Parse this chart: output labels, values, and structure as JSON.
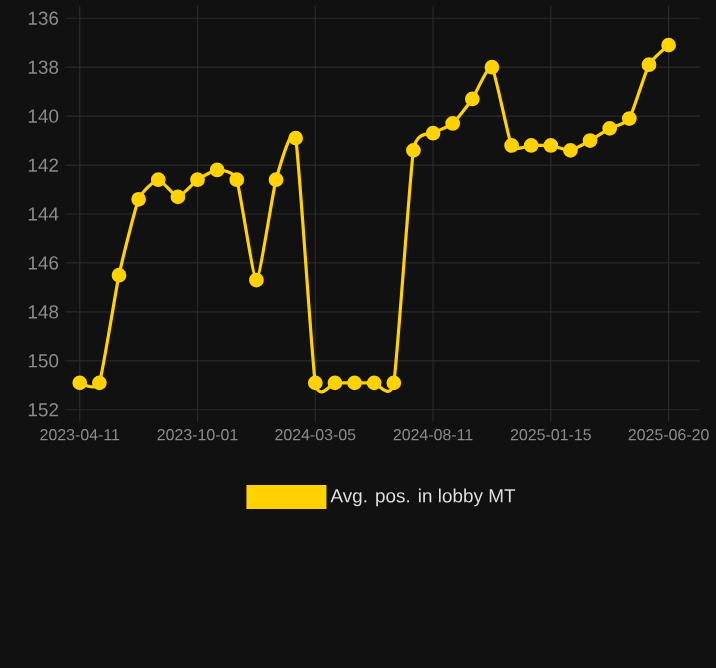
{
  "chart_data": {
    "type": "line",
    "categories": [
      "2023-04-11",
      null,
      null,
      null,
      null,
      null,
      "2023-10-01",
      null,
      null,
      null,
      null,
      null,
      "2024-03-05",
      null,
      null,
      null,
      null,
      null,
      "2024-08-11",
      null,
      null,
      null,
      null,
      null,
      "2025-01-15",
      null,
      null,
      null,
      null,
      null,
      "2025-06-20"
    ],
    "series": [
      {
        "name": "Avg. pos. in lobby MT",
        "color": "#ffd200",
        "values": [
          150.9,
          150.9,
          146.5,
          143.4,
          142.6,
          143.3,
          142.6,
          142.2,
          142.6,
          146.7,
          142.6,
          140.9,
          150.9,
          150.9,
          150.9,
          150.9,
          150.9,
          141.4,
          140.7,
          140.3,
          139.3,
          138.0,
          141.2,
          141.2,
          141.2,
          141.4,
          141.0,
          140.5,
          140.1,
          137.9,
          137.1
        ]
      }
    ],
    "ylim": [
      152.5,
      135.5
    ],
    "yticks": [
      136,
      138,
      140,
      142,
      144,
      146,
      148,
      150,
      152
    ],
    "grid": true,
    "legend": "bottom",
    "marker": "circle",
    "line_style": "solid"
  }
}
